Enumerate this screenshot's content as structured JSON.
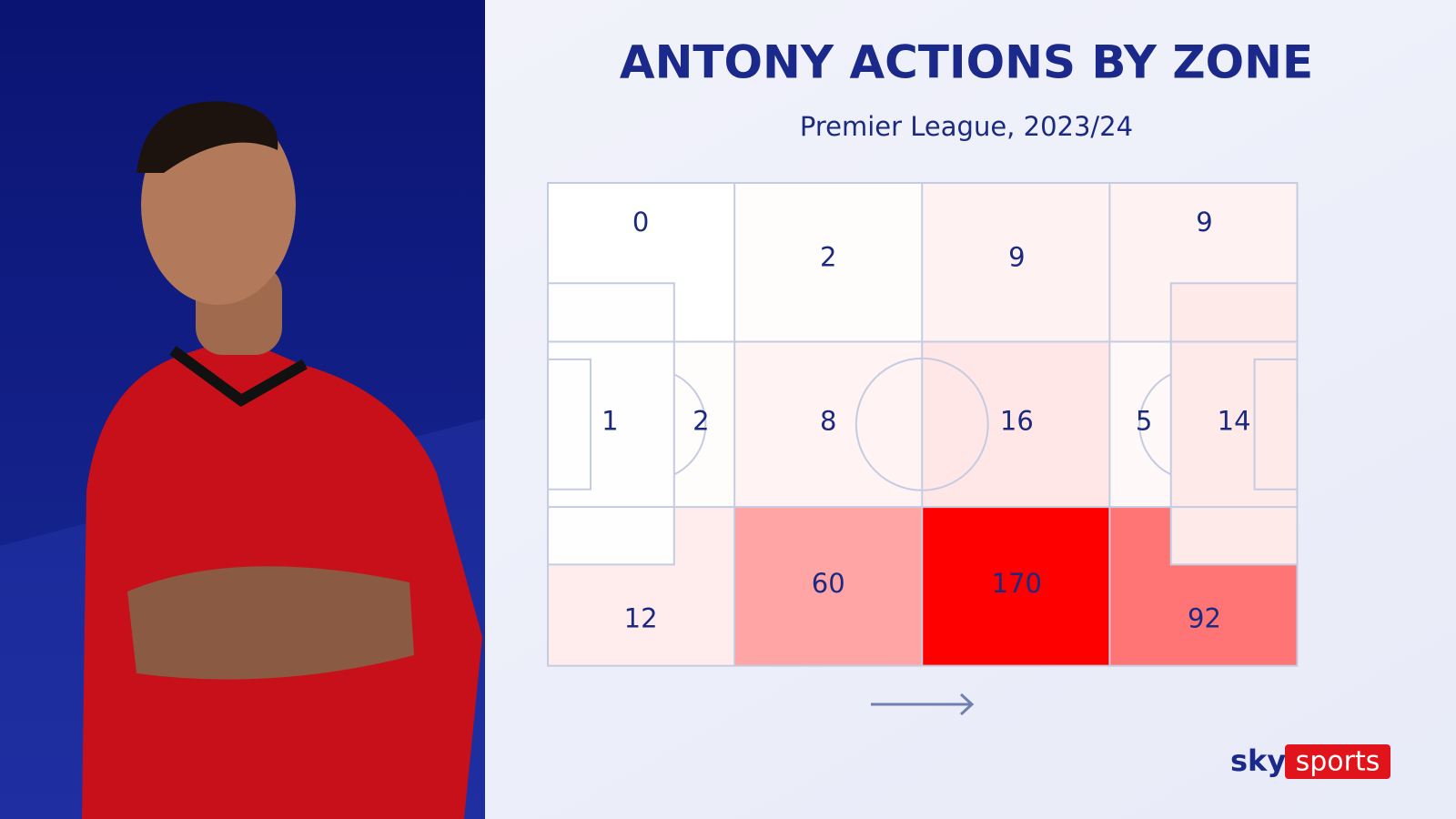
{
  "chart_data": {
    "type": "pitch-heatmap",
    "title": "ANTONY ACTIONS BY ZONE",
    "subtitle": "Premier League, 2023/24",
    "values": [
      0,
      1,
      2,
      12,
      2,
      8,
      60,
      9,
      16,
      170,
      9,
      5,
      14,
      92
    ],
    "color": "#ff0000",
    "brand": [
      "sky",
      "sports"
    ]
  }
}
